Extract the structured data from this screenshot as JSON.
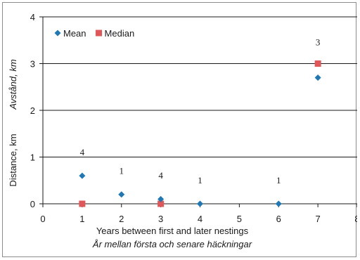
{
  "chart_data": {
    "type": "scatter",
    "xlabel": "Years between first and later nestings",
    "xlabel_secondary": "År mellan första och senare häckningar",
    "ylabel": "Distance, km",
    "ylabel_secondary": "Avstånd, km",
    "xlim": [
      0,
      8
    ],
    "ylim": [
      0,
      4
    ],
    "x_ticks": [
      "0",
      "1",
      "2",
      "3",
      "4",
      "5",
      "6",
      "7",
      "8"
    ],
    "y_ticks": [
      "0",
      "1",
      "2",
      "3",
      "4"
    ],
    "grid": "horizontal",
    "legend_position": "top-left",
    "series": [
      {
        "name": "Mean",
        "marker": "diamond",
        "color": "#1f77b4",
        "x": [
          1,
          2,
          3,
          4,
          6,
          7
        ],
        "y": [
          0.6,
          0.2,
          0.1,
          0.0,
          0.0,
          2.7
        ]
      },
      {
        "name": "Median",
        "marker": "square",
        "color": "#e15759",
        "x": [
          1,
          3,
          7
        ],
        "y": [
          0.0,
          0.0,
          3.0
        ]
      }
    ],
    "sample_sizes": [
      {
        "x": 1,
        "y": 1.1,
        "label": "4"
      },
      {
        "x": 2,
        "y": 0.7,
        "label": "1"
      },
      {
        "x": 3,
        "y": 0.6,
        "label": "4"
      },
      {
        "x": 4,
        "y": 0.5,
        "label": "1"
      },
      {
        "x": 6,
        "y": 0.5,
        "label": "1"
      },
      {
        "x": 7,
        "y": 3.45,
        "label": "3"
      }
    ]
  }
}
